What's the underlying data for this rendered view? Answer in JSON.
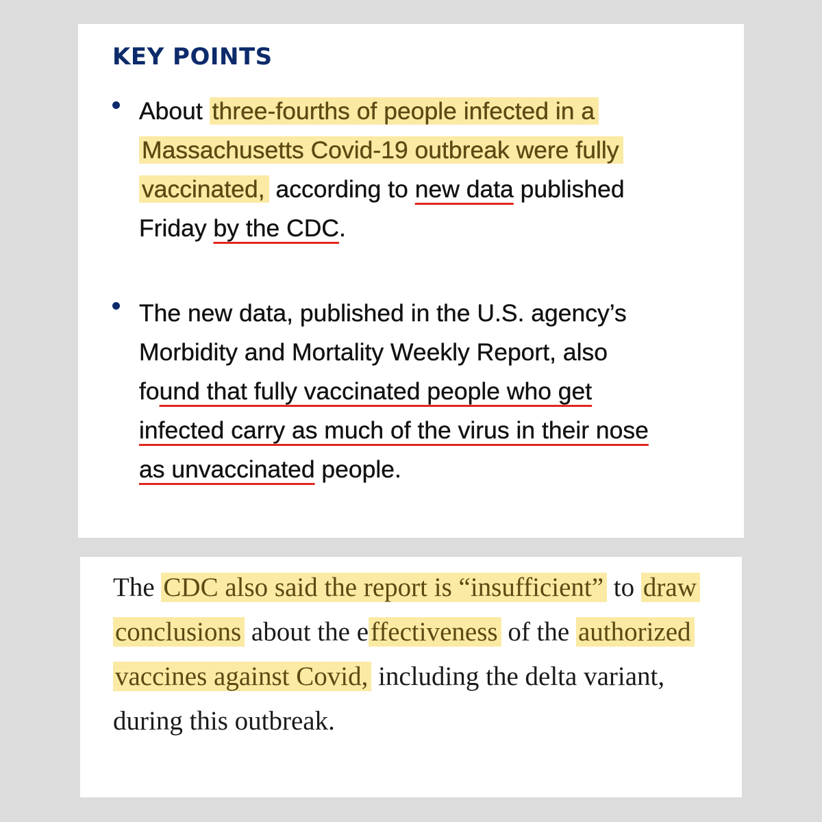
{
  "key_points": {
    "heading": "KEY POINTS",
    "bullet1": {
      "pre": "About ",
      "highlight": "three-fourths of people infected in a Massachusetts Covid-19 outbreak were fully vaccinated,",
      "mid": " according to ",
      "underline1": "new data",
      "mid2": " published Friday ",
      "underline2": "by the CDC",
      "end": "."
    },
    "bullet2": {
      "pre": "The new data, published in the U.S. agency’s Morbidity and Mortality Weekly Report, also fo",
      "underline": "und that fully vaccinated people who get infected carry as much of the virus in their nose as unvaccinated",
      "end": " people."
    }
  },
  "article": {
    "t1": "The ",
    "h1": "CDC also said the report is “insufficient”",
    "t2": " to ",
    "h2": "draw conclusions",
    "t3": " about the e",
    "h3": "ffectiveness",
    "t4": " of the ",
    "h4": "authorized vaccines against Covid,",
    "t5": " including the delta variant, during this outbreak."
  },
  "colors": {
    "heading": "#0d2b6b",
    "highlight": "#fbeaa4",
    "underline": "#e0261d",
    "background": "#dcdcdc"
  }
}
